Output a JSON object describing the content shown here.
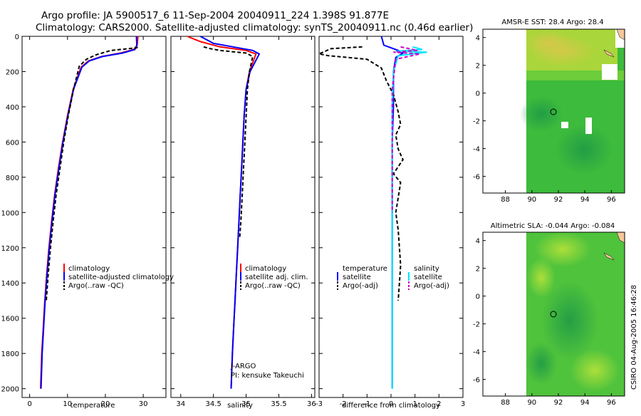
{
  "header": {
    "line1": "Argo profile: JA 5900517_6 11-Sep-2004 20040911_224 1.398S 91.877E",
    "line2": "Climatology: CARS2000. Satellite-adjusted climatology: synTS_20040911.nc (0.46d earlier)"
  },
  "colors": {
    "climatology": "#ff0000",
    "satellite": "#0000ff",
    "argo": "#000000",
    "sal_satellite": "#00e5ff",
    "sal_argo": "#cc00cc",
    "land": "#f7c79a",
    "ocean_green": "#2fbf3a"
  },
  "footer": {
    "stamp": "CSIRO 04-Aug-2005 16:46:28"
  },
  "annotations": {
    "agency": "J-ARGO",
    "pi": "PI: kensuke Takeuchi"
  },
  "chart_data": [
    {
      "type": "line",
      "id": "temperature",
      "xlabel": "temperature",
      "ylabel": "",
      "xlim": [
        -2,
        36
      ],
      "ylim": [
        2050,
        0
      ],
      "xticks": [
        0,
        10,
        20,
        30
      ],
      "yticks": [
        0,
        200,
        400,
        600,
        800,
        1000,
        1200,
        1400,
        1600,
        1800,
        2000
      ],
      "legend": [
        "climatology",
        "satellite-adjusted climatology",
        "Argo(..raw -QC)"
      ],
      "series": [
        {
          "name": "climatology",
          "color": "#ff0000",
          "dash": false,
          "x": [
            28.6,
            28.4,
            27.5,
            24,
            19,
            15.5,
            13.6,
            11.5,
            10,
            8.7,
            7.6,
            6.6,
            5.8,
            5.1,
            4.5,
            4.0,
            3.6,
            3.2,
            2.9
          ],
          "y": [
            0,
            50,
            75,
            95,
            115,
            140,
            175,
            300,
            450,
            600,
            750,
            900,
            1050,
            1200,
            1350,
            1500,
            1650,
            1800,
            2000
          ]
        },
        {
          "name": "satellite-adjusted climatology",
          "color": "#0000ff",
          "dash": false,
          "x": [
            28.2,
            28.3,
            27.8,
            24.5,
            19.2,
            15.7,
            13.8,
            11.6,
            10.1,
            8.8,
            7.7,
            6.7,
            5.9,
            5.2,
            4.6,
            4.1,
            3.7,
            3.3,
            3.0
          ],
          "y": [
            0,
            50,
            75,
            95,
            115,
            140,
            175,
            300,
            450,
            600,
            750,
            900,
            1050,
            1200,
            1350,
            1500,
            1650,
            1800,
            2000
          ]
        },
        {
          "name": "Argo(..raw -QC)",
          "color": "#000000",
          "dash": true,
          "x": [
            28.5,
            28.3,
            21.5,
            17.5,
            15,
            13.1,
            11.6,
            10.2,
            9.0,
            8.0,
            7.0,
            6.2,
            5.5,
            4.9,
            4.4
          ],
          "y": [
            60,
            65,
            80,
            105,
            130,
            170,
            300,
            450,
            600,
            750,
            900,
            1050,
            1200,
            1350,
            1500
          ]
        }
      ]
    },
    {
      "type": "line",
      "id": "salinity",
      "xlabel": "salinity",
      "ylabel": "",
      "xlim": [
        33.85,
        36.05
      ],
      "ylim": [
        2050,
        0
      ],
      "xticks": [
        34,
        34.5,
        35,
        35.5,
        36
      ],
      "legend": [
        "climatology",
        "satellite adj. clim.",
        "Argo(..raw -QC)"
      ],
      "series": [
        {
          "name": "climatology",
          "color": "#ff0000",
          "dash": false,
          "x": [
            34.1,
            34.3,
            34.6,
            35.0,
            35.15,
            35.05,
            35.0,
            34.97,
            34.95,
            34.93,
            34.91,
            34.89,
            34.87,
            34.85,
            34.83,
            34.81,
            34.79,
            34.78,
            34.77
          ],
          "y": [
            0,
            30,
            60,
            80,
            100,
            200,
            300,
            450,
            600,
            750,
            900,
            1050,
            1200,
            1350,
            1500,
            1650,
            1800,
            1900,
            2000
          ]
        },
        {
          "name": "satellite adj. clim.",
          "color": "#0000ff",
          "dash": false,
          "x": [
            34.3,
            34.5,
            34.8,
            35.1,
            35.2,
            35.06,
            35.0,
            34.97,
            34.95,
            34.93,
            34.91,
            34.89,
            34.87,
            34.85,
            34.83,
            34.81,
            34.79,
            34.78,
            34.77
          ],
          "y": [
            0,
            40,
            60,
            80,
            100,
            200,
            300,
            450,
            600,
            750,
            900,
            1050,
            1200,
            1350,
            1500,
            1650,
            1800,
            1900,
            2000
          ]
        },
        {
          "name": "Argo(..raw -QC)",
          "color": "#000000",
          "dash": true,
          "x": [
            34.35,
            34.45,
            34.6,
            35.0,
            35.1,
            35.05,
            35.02,
            35.0,
            34.98,
            34.96,
            34.94,
            34.92,
            34.9
          ],
          "y": [
            60,
            70,
            80,
            95,
            115,
            200,
            300,
            450,
            600,
            750,
            900,
            1050,
            1150
          ]
        }
      ]
    },
    {
      "type": "line",
      "id": "difference",
      "xlabel": "difference from climatology",
      "ylabel": "",
      "xlim": [
        -3,
        3
      ],
      "ylim": [
        2050,
        0
      ],
      "xticks": [
        -3,
        -2,
        -1,
        0,
        1,
        2,
        3
      ],
      "legend_left": [
        "temperature",
        "satellite",
        "Argo(-adj)"
      ],
      "legend_right": [
        "salinity",
        "satellite",
        "Argo(-adj)"
      ],
      "series": [
        {
          "name": "temperature satellite",
          "color": "#0000ff",
          "dash": false,
          "x": [
            -0.4,
            -0.3,
            0.3,
            0.5,
            0.2,
            0.1,
            0.1,
            0.05,
            0.05,
            0.05,
            0.05,
            0.05,
            0.05
          ],
          "y": [
            0,
            50,
            80,
            95,
            120,
            200,
            400,
            600,
            800,
            1000,
            1400,
            1800,
            2000
          ]
        },
        {
          "name": "temperature Argo(-adj)",
          "color": "#000000",
          "dash": true,
          "x": [
            -1.2,
            -2.5,
            -3.0,
            -2.6,
            -1.0,
            -0.4,
            -0.2,
            0.1,
            0.3,
            0.4,
            0.2,
            0.3,
            0.5,
            0.1,
            0.4,
            0.2,
            0.3,
            0.4,
            0.3
          ],
          "y": [
            60,
            70,
            100,
            110,
            130,
            180,
            250,
            330,
            430,
            500,
            560,
            640,
            700,
            780,
            830,
            1000,
            1100,
            1300,
            1500
          ]
        },
        {
          "name": "salinity satellite",
          "color": "#00e5ff",
          "dash": false,
          "x": [
            0.9,
            1.3,
            0.2,
            1.5,
            0.3,
            0.1,
            0.05,
            0.05,
            0.05,
            0.05,
            0.05,
            0.05
          ],
          "y": [
            60,
            75,
            85,
            90,
            110,
            200,
            400,
            600,
            800,
            1200,
            1600,
            2000
          ]
        },
        {
          "name": "salinity Argo(-adj)",
          "color": "#cc00cc",
          "dash": true,
          "x": [
            0.4,
            1.1,
            0.1,
            1.2,
            0.2,
            0.05,
            0.05,
            0.05,
            0.05
          ],
          "y": [
            60,
            80,
            90,
            100,
            130,
            300,
            600,
            800,
            1000
          ]
        }
      ]
    },
    {
      "type": "heatmap",
      "id": "sst_map",
      "title": "AMSR-E SST: 28.4 Argo: 28.4",
      "xticks": [
        88,
        90,
        92,
        94,
        96
      ],
      "yticks": [
        -6,
        -4,
        -2,
        0,
        2,
        4
      ],
      "xlim": [
        86.3,
        97
      ],
      "ylim": [
        -7.2,
        4.6
      ],
      "marker": {
        "lon": 91.877,
        "lat": -1.398
      }
    },
    {
      "type": "heatmap",
      "id": "sla_map",
      "title": "Altimetric SLA: -0.044 Argo: -0.084",
      "xticks": [
        88,
        90,
        92,
        94,
        96
      ],
      "yticks": [
        -6,
        -4,
        -2,
        0,
        2,
        4
      ],
      "xlim": [
        86.3,
        97
      ],
      "ylim": [
        -7.2,
        4.6
      ],
      "marker": {
        "lon": 91.877,
        "lat": -1.398
      }
    }
  ]
}
